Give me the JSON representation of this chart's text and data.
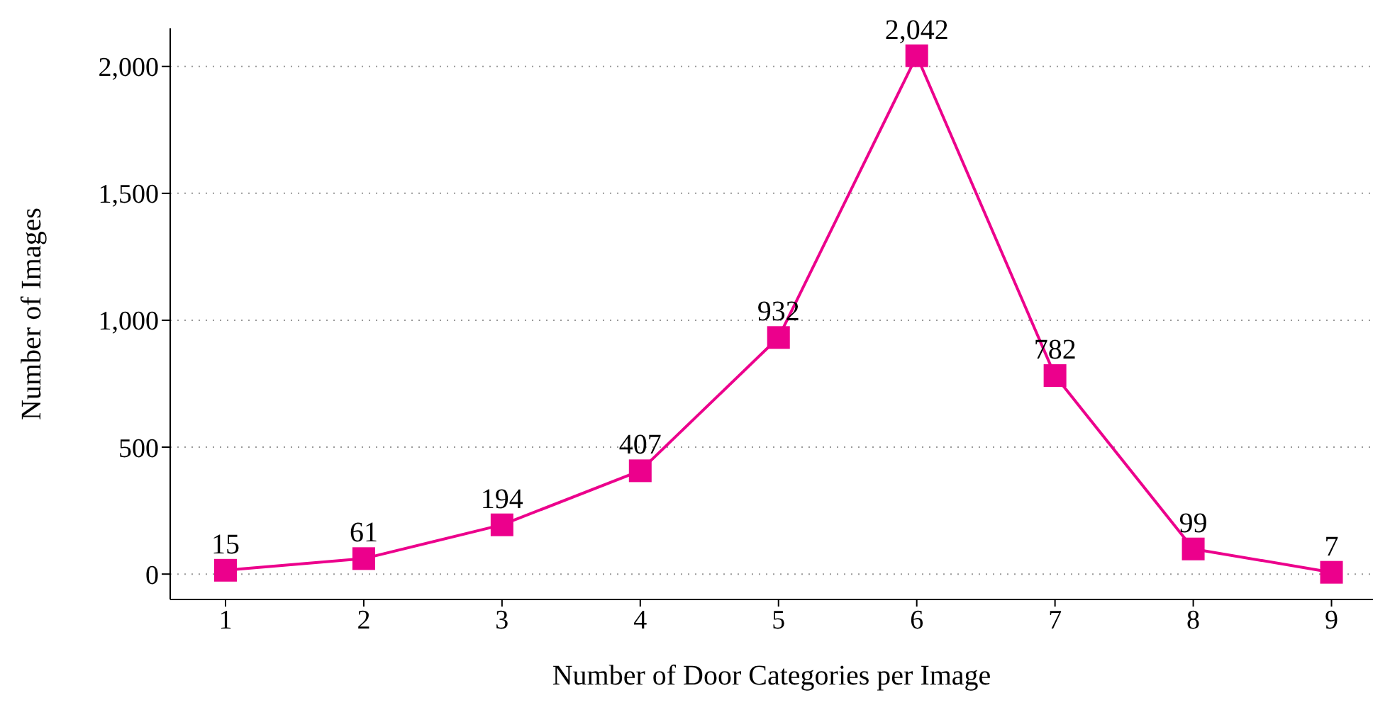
{
  "chart_data": {
    "type": "line",
    "xlabel": "Number of Door Categories per Image",
    "ylabel": "Number of Images",
    "x": [
      1,
      2,
      3,
      4,
      5,
      6,
      7,
      8,
      9
    ],
    "series": [
      {
        "color": "#ec008c",
        "values": [
          15,
          61,
          194,
          407,
          932,
          2042,
          782,
          99,
          7
        ],
        "value_labels": [
          "15",
          "61",
          "194",
          "407",
          "932",
          "2,042",
          "782",
          "99",
          "7"
        ]
      }
    ],
    "xlim": [
      0.6,
      9.3
    ],
    "xticks": [
      1,
      2,
      3,
      4,
      5,
      6,
      7,
      8,
      9
    ],
    "ylim": [
      -100,
      2150
    ],
    "yticks": [
      0,
      500,
      {
        "value": 1000,
        "label": "1,000"
      },
      {
        "value": 1500,
        "label": "1,500"
      },
      {
        "value": 2000,
        "label": "2,000"
      }
    ],
    "grid": "y",
    "marker": "square",
    "line_style": "solid",
    "legend": false
  }
}
